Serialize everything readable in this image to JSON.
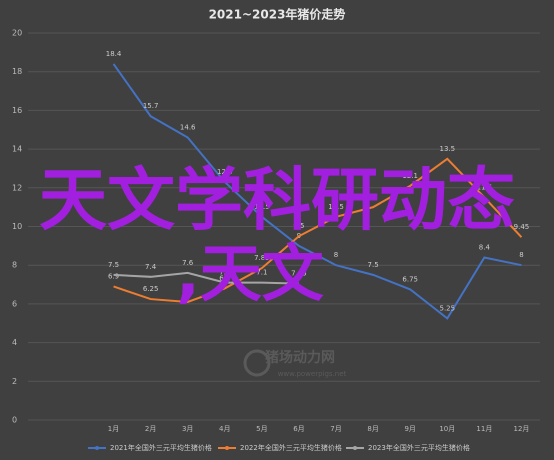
{
  "chart_data": {
    "type": "line",
    "title": "2021~2023年猪价走势",
    "categories": [
      "1月",
      "2月",
      "3月",
      "4月",
      "5月",
      "6月",
      "7月",
      "8月",
      "9月",
      "10月",
      "11月",
      "12月"
    ],
    "series": [
      {
        "name": "2021年全国外三元平均生猪价格",
        "color": "#4472c4",
        "values": [
          18.4,
          15.7,
          14.6,
          12.3,
          10.5,
          9,
          8,
          7.5,
          6.75,
          5.25,
          8.4,
          8
        ]
      },
      {
        "name": "2022年全国外三元平均生猪价格",
        "color": "#ed7d31",
        "values": [
          6.9,
          6.25,
          6.1,
          6.8,
          7.85,
          9.5,
          10.5,
          11,
          12.1,
          13.5,
          11.5,
          9.45
        ]
      },
      {
        "name": "2023年全国外三元平均生猪价格",
        "color": "#a5a5a5",
        "values": [
          7.5,
          7.4,
          7.6,
          7.1,
          7.1,
          7.05,
          null,
          null,
          null,
          null,
          null,
          null
        ]
      }
    ],
    "ylim": [
      0,
      20
    ],
    "yticks": [
      0,
      2,
      4,
      6,
      8,
      10,
      12,
      14,
      16,
      18,
      20
    ],
    "grid": true,
    "legend": "bottom",
    "watermark": [
      "猪场动力网",
      "www.powerpigs.net"
    ],
    "overlay_text": [
      "天文学科研动态",
      ",天文"
    ]
  }
}
